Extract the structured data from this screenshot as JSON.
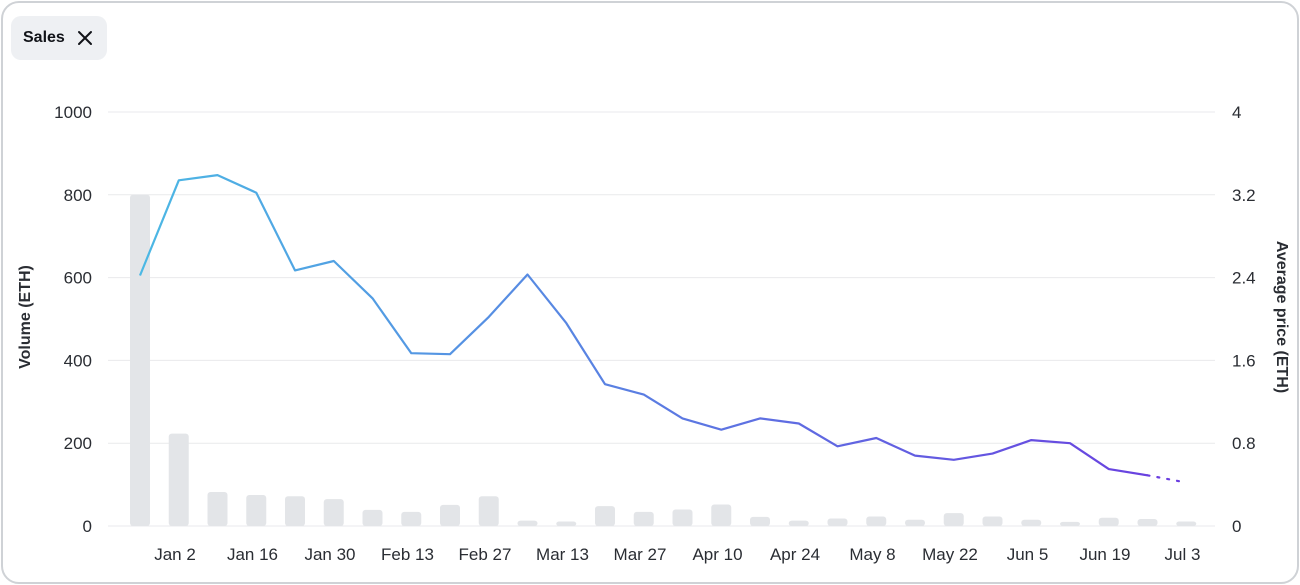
{
  "filter_chip": {
    "label": "Sales"
  },
  "colors": {
    "bar": "#e3e5e8",
    "grid": "#e9eaec",
    "line_start": "#4cb8e4",
    "line_end": "#6a3ee0"
  },
  "chart_data": {
    "type": "bar+line",
    "y_left_label": "Volume (ETH)",
    "y_right_label": "Average price (ETH)",
    "y_left_lim": [
      0,
      1000
    ],
    "y_right_lim": [
      0,
      4
    ],
    "y_left_ticks": [
      "1000",
      "800",
      "600",
      "400",
      "200",
      "0"
    ],
    "y_right_ticks": [
      "4",
      "3.2",
      "2.4",
      "1.6",
      "0.8",
      "0"
    ],
    "x_tick_labels": [
      "Jan 2",
      "Jan 16",
      "Jan 30",
      "Feb 13",
      "Feb 27",
      "Mar 13",
      "Mar 27",
      "Apr 10",
      "Apr 24",
      "May 8",
      "May 22",
      "Jun 5",
      "Jun 19",
      "Jul 3"
    ],
    "grid": true,
    "series": [
      {
        "name": "Volume (ETH)",
        "type": "bar",
        "values": [
          800,
          223,
          82,
          75,
          72,
          65,
          39,
          34,
          51,
          72,
          13,
          11,
          48,
          34,
          40,
          52,
          22,
          13,
          18,
          23,
          15,
          31,
          23,
          15,
          10,
          20,
          17,
          11
        ]
      },
      {
        "name": "Average price (ETH)",
        "type": "line",
        "values": [
          2.42,
          3.34,
          3.39,
          3.22,
          2.47,
          2.56,
          2.2,
          1.67,
          1.66,
          2.02,
          2.43,
          1.96,
          1.37,
          1.27,
          1.04,
          0.93,
          1.04,
          0.99,
          0.77,
          0.85,
          0.68,
          0.64,
          0.7,
          0.83,
          0.8,
          0.55,
          0.49
        ],
        "projected_tail": [
          0.49,
          0.42
        ]
      }
    ]
  }
}
